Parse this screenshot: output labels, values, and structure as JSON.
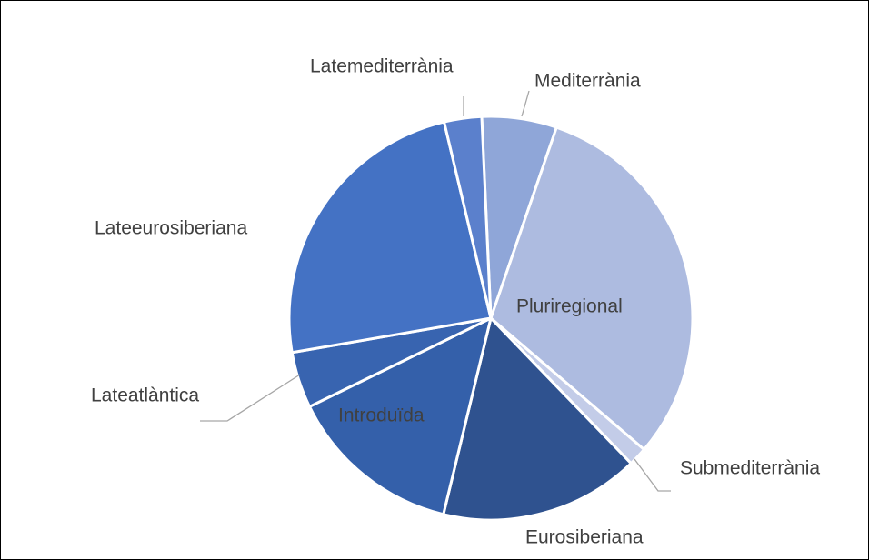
{
  "chart_data": {
    "type": "pie",
    "categories": [
      "Mediterrània",
      "Pluriregional",
      "Submediterrània",
      "Eurosiberiana",
      "Introduïda",
      "Lateatlàntica",
      "Lateeurosiberiana",
      "Latemediterrània"
    ],
    "values": [
      6,
      31,
      1.5,
      16,
      14,
      4.5,
      24,
      3
    ],
    "colors": [
      "#8fa6d8",
      "#adbbe0",
      "#c3cce8",
      "#2f528f",
      "#3460aa",
      "#3864b0",
      "#4472c4",
      "#5b80cc"
    ]
  }
}
